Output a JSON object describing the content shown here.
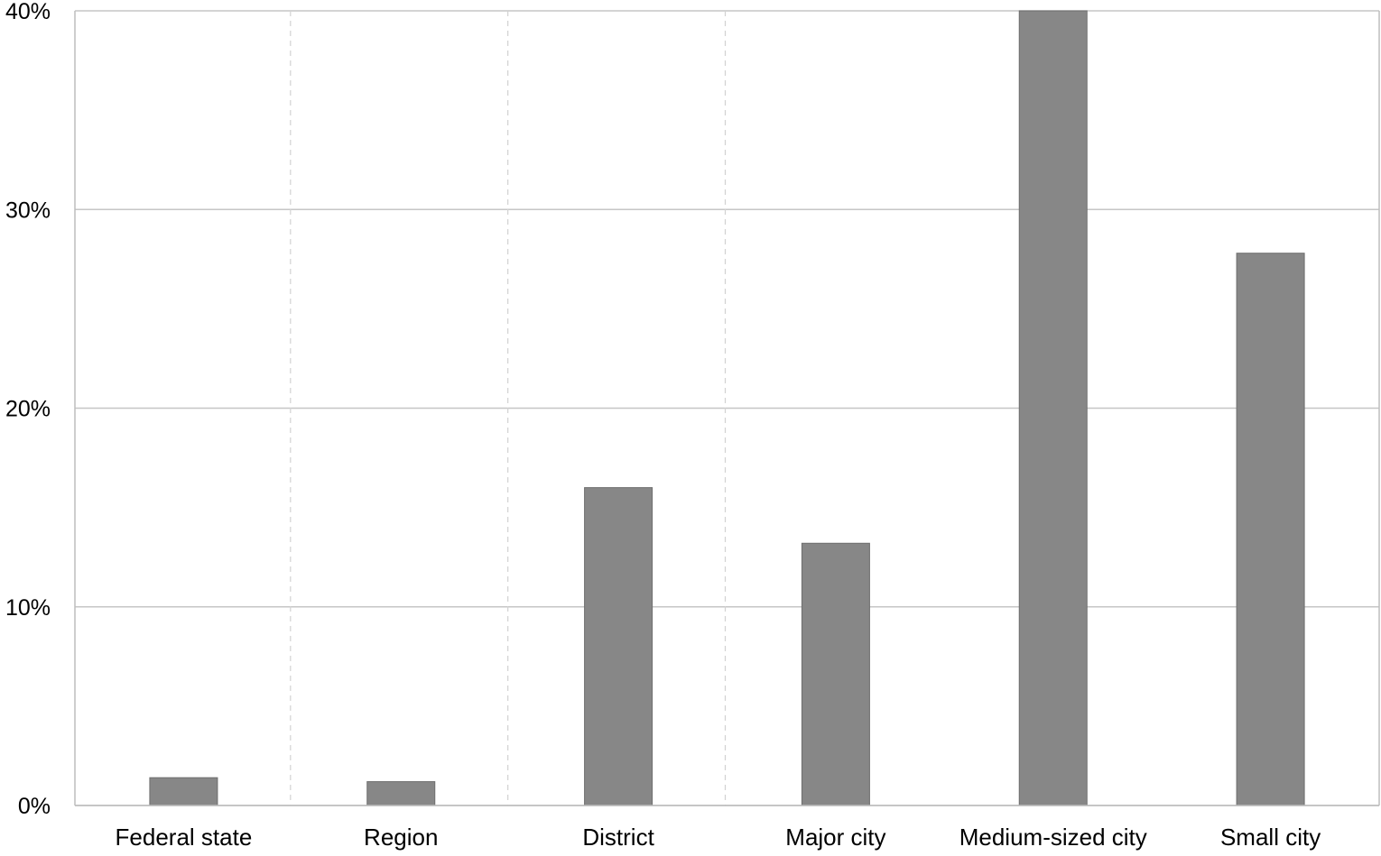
{
  "chart_data": {
    "type": "bar",
    "title": "",
    "xlabel": "",
    "ylabel": "",
    "categories": [
      "Federal state",
      "Region",
      "District",
      "Major city",
      "Medium-sized city",
      "Small city"
    ],
    "values": [
      1.4,
      1.2,
      16.0,
      13.2,
      40.0,
      27.8
    ],
    "ylim": [
      0,
      40
    ],
    "yticks": [
      0,
      10,
      20,
      30,
      40
    ],
    "ytick_labels": [
      "0%",
      "10%",
      "20%",
      "30%",
      "40%"
    ],
    "grid": "horizontal solid at y ticks; dashed vertical separators between first four categories",
    "legend": "none"
  },
  "colors": {
    "bar": "#878787",
    "bar_edge": "#6e6e6e",
    "grid": "#c6c6c6",
    "separator": "#d2d2d2",
    "frame": "#bdbdbd"
  }
}
